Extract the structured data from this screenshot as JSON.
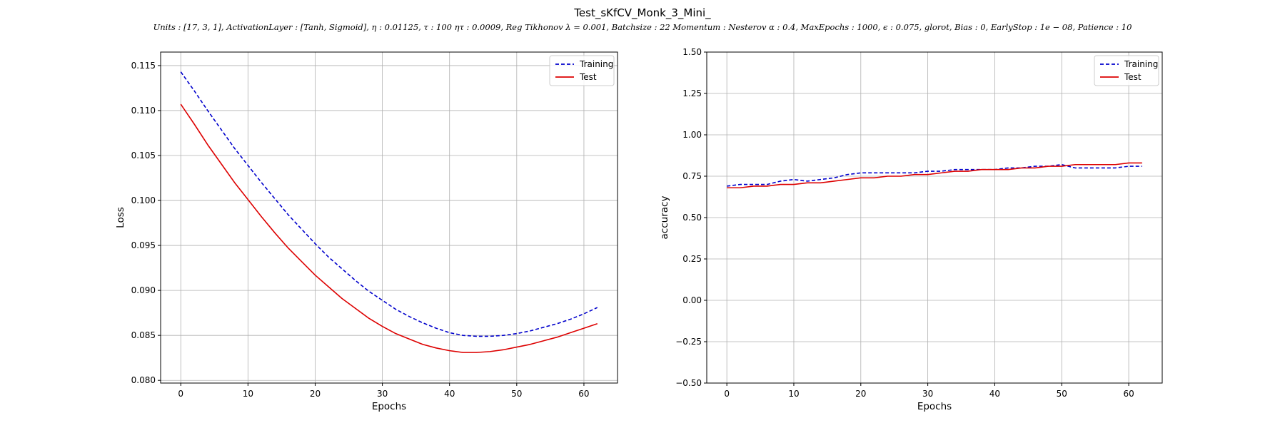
{
  "figure": {
    "title": "Test_sKfCV_Monk_3_Mini_",
    "subtitle": "Units : [17, 3, 1], ActivationLayer : [Tanh, Sigmoid], η : 0.01125, τ : 100 ητ : 0.0009, Reg Tikhonov λ = 0.001, Batchsize : 22 Momentum : Nesterov α : 0.4, MaxEpochs : 1000, ϵ : 0.075, glorot, Bias : 0, EarlyStop : 1e − 08, Patience : 10"
  },
  "chart_data": [
    {
      "type": "line",
      "xlabel": "Epochs",
      "ylabel": "Loss",
      "xlim": [
        -3,
        65
      ],
      "ylim": [
        0.0797,
        0.1165
      ],
      "xticks": [
        0,
        10,
        20,
        30,
        40,
        50,
        60
      ],
      "yticks": [
        0.08,
        0.085,
        0.09,
        0.095,
        0.1,
        0.105,
        0.11,
        0.115
      ],
      "ytick_labels": [
        "0.080",
        "0.085",
        "0.090",
        "0.095",
        "0.100",
        "0.105",
        "0.110",
        "0.115"
      ],
      "grid": true,
      "legend_position": "top-right",
      "series": [
        {
          "name": "Training",
          "color": "#0000cc",
          "style": "dashed",
          "x": [
            0,
            2,
            4,
            6,
            8,
            10,
            12,
            14,
            16,
            18,
            20,
            22,
            24,
            26,
            28,
            30,
            32,
            34,
            36,
            38,
            40,
            42,
            44,
            46,
            48,
            50,
            52,
            54,
            56,
            58,
            60,
            62
          ],
          "y": [
            0.1143,
            0.1122,
            0.11,
            0.1079,
            0.1058,
            0.1039,
            0.102,
            0.1002,
            0.0984,
            0.0968,
            0.0952,
            0.0937,
            0.0924,
            0.0911,
            0.0899,
            0.0889,
            0.0879,
            0.0871,
            0.0864,
            0.0858,
            0.0853,
            0.085,
            0.0849,
            0.0849,
            0.085,
            0.0852,
            0.0855,
            0.0859,
            0.0863,
            0.0868,
            0.0874,
            0.0881
          ]
        },
        {
          "name": "Test",
          "color": "#dd0000",
          "style": "solid",
          "x": [
            0,
            2,
            4,
            6,
            8,
            10,
            12,
            14,
            16,
            18,
            20,
            22,
            24,
            26,
            28,
            30,
            32,
            34,
            36,
            38,
            40,
            42,
            44,
            46,
            48,
            50,
            52,
            54,
            56,
            58,
            60,
            62
          ],
          "y": [
            0.1107,
            0.1085,
            0.1062,
            0.1041,
            0.102,
            0.1001,
            0.0982,
            0.0964,
            0.0947,
            0.0932,
            0.0917,
            0.0904,
            0.0891,
            0.088,
            0.0869,
            0.086,
            0.0852,
            0.0846,
            0.084,
            0.0836,
            0.0833,
            0.0831,
            0.0831,
            0.0832,
            0.0834,
            0.0837,
            0.084,
            0.0844,
            0.0848,
            0.0853,
            0.0858,
            0.0863
          ]
        }
      ]
    },
    {
      "type": "line",
      "xlabel": "Epochs",
      "ylabel": "accuracy",
      "xlim": [
        -3,
        65
      ],
      "ylim": [
        -0.5,
        1.5
      ],
      "xticks": [
        0,
        10,
        20,
        30,
        40,
        50,
        60
      ],
      "yticks": [
        -0.5,
        -0.25,
        0.0,
        0.25,
        0.5,
        0.75,
        1.0,
        1.25,
        1.5
      ],
      "ytick_labels": [
        "−0.50",
        "−0.25",
        "0.00",
        "0.25",
        "0.50",
        "0.75",
        "1.00",
        "1.25",
        "1.50"
      ],
      "grid": true,
      "legend_position": "top-right",
      "series": [
        {
          "name": "Training",
          "color": "#0000cc",
          "style": "dashed",
          "x": [
            0,
            2,
            4,
            6,
            8,
            10,
            12,
            14,
            16,
            18,
            20,
            22,
            24,
            26,
            28,
            30,
            32,
            34,
            36,
            38,
            40,
            42,
            44,
            46,
            48,
            50,
            52,
            54,
            56,
            58,
            60,
            62
          ],
          "y": [
            0.69,
            0.7,
            0.7,
            0.7,
            0.72,
            0.73,
            0.72,
            0.73,
            0.74,
            0.76,
            0.77,
            0.77,
            0.77,
            0.77,
            0.77,
            0.78,
            0.78,
            0.79,
            0.79,
            0.79,
            0.79,
            0.8,
            0.8,
            0.81,
            0.81,
            0.82,
            0.8,
            0.8,
            0.8,
            0.8,
            0.81,
            0.81
          ]
        },
        {
          "name": "Test",
          "color": "#dd0000",
          "style": "solid",
          "x": [
            0,
            2,
            4,
            6,
            8,
            10,
            12,
            14,
            16,
            18,
            20,
            22,
            24,
            26,
            28,
            30,
            32,
            34,
            36,
            38,
            40,
            42,
            44,
            46,
            48,
            50,
            52,
            54,
            56,
            58,
            60,
            62
          ],
          "y": [
            0.68,
            0.68,
            0.69,
            0.69,
            0.7,
            0.7,
            0.71,
            0.71,
            0.72,
            0.73,
            0.74,
            0.74,
            0.75,
            0.75,
            0.76,
            0.76,
            0.77,
            0.78,
            0.78,
            0.79,
            0.79,
            0.79,
            0.8,
            0.8,
            0.81,
            0.81,
            0.82,
            0.82,
            0.82,
            0.82,
            0.83,
            0.83
          ]
        }
      ]
    }
  ]
}
